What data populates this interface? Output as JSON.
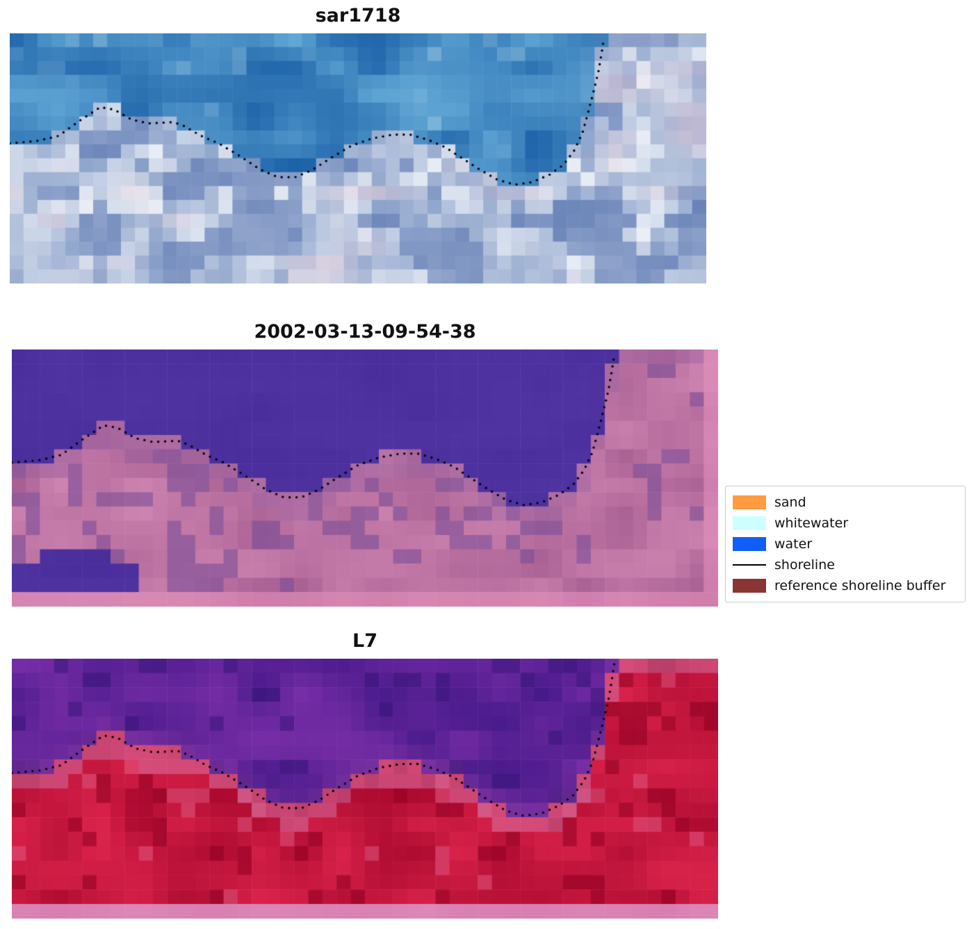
{
  "figure": {
    "panels": [
      {
        "id": "canvas-sar",
        "title": "sar1718",
        "type": "sar"
      },
      {
        "id": "canvas-class",
        "title": "2002-03-13-09-54-38",
        "type": "classified"
      },
      {
        "id": "canvas-l7",
        "title": "L7",
        "type": "l7"
      }
    ]
  },
  "legend": {
    "items": [
      {
        "label": "sand",
        "color": "#ff9b41",
        "swatch": "patch"
      },
      {
        "label": "whitewater",
        "color": "#ccffff",
        "swatch": "patch"
      },
      {
        "label": "water",
        "color": "#0f5ef7",
        "swatch": "patch"
      },
      {
        "label": "shoreline",
        "color": "#000000",
        "swatch": "line"
      },
      {
        "label": "reference shoreline buffer",
        "color": "#8b3434",
        "swatch": "patch"
      }
    ]
  },
  "chart_data": {
    "type": "heatmap",
    "title": "",
    "panels": [
      "sar1718",
      "2002-03-13-09-54-38",
      "L7"
    ],
    "legend_entries": [
      "sand",
      "whitewater",
      "water",
      "shoreline",
      "reference shoreline buffer"
    ],
    "shoreline_points": [
      [
        0.0,
        0.44
      ],
      [
        0.04,
        0.43
      ],
      [
        0.07,
        0.41
      ],
      [
        0.1,
        0.35
      ],
      [
        0.13,
        0.295
      ],
      [
        0.15,
        0.305
      ],
      [
        0.175,
        0.345
      ],
      [
        0.2,
        0.36
      ],
      [
        0.235,
        0.355
      ],
      [
        0.25,
        0.37
      ],
      [
        0.275,
        0.41
      ],
      [
        0.3,
        0.44
      ],
      [
        0.33,
        0.49
      ],
      [
        0.36,
        0.545
      ],
      [
        0.385,
        0.575
      ],
      [
        0.41,
        0.575
      ],
      [
        0.435,
        0.545
      ],
      [
        0.46,
        0.5
      ],
      [
        0.49,
        0.45
      ],
      [
        0.52,
        0.42
      ],
      [
        0.55,
        0.405
      ],
      [
        0.575,
        0.405
      ],
      [
        0.6,
        0.425
      ],
      [
        0.625,
        0.455
      ],
      [
        0.65,
        0.5
      ],
      [
        0.675,
        0.545
      ],
      [
        0.7,
        0.585
      ],
      [
        0.725,
        0.605
      ],
      [
        0.75,
        0.595
      ],
      [
        0.775,
        0.565
      ],
      [
        0.795,
        0.525
      ],
      [
        0.81,
        0.47
      ],
      [
        0.822,
        0.4
      ],
      [
        0.83,
        0.32
      ],
      [
        0.838,
        0.235
      ],
      [
        0.845,
        0.155
      ],
      [
        0.85,
        0.075
      ],
      [
        0.853,
        0.02
      ]
    ],
    "palette": {
      "classified_water": "#4c309e",
      "classified_land_pink": "#b06a98",
      "buffer_pink": "#ce7dac",
      "l7_water_purple": "#5c2da0",
      "l7_land_red": "#c81742",
      "sar_water_blue": "#2f7ab0"
    }
  }
}
